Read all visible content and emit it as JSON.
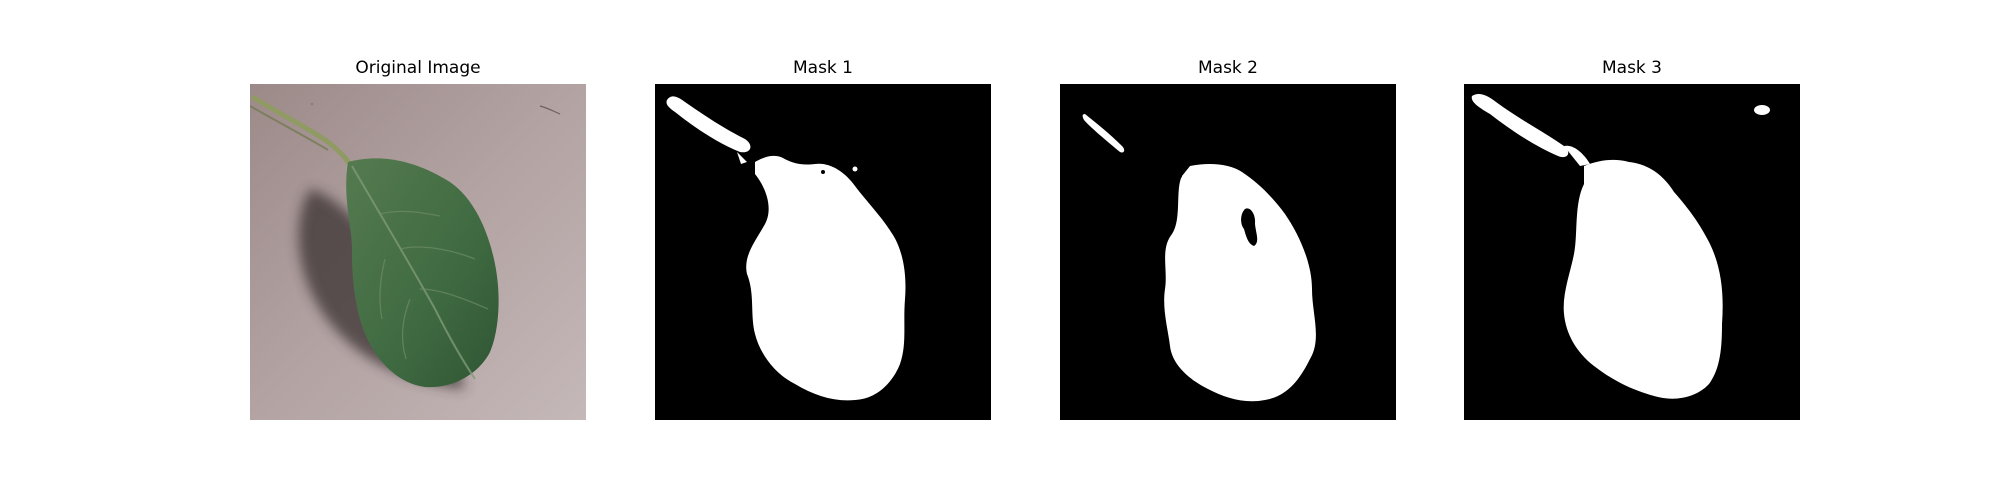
{
  "panels": [
    {
      "title": "Original Image",
      "kind": "photo",
      "subject": "leaf-on-pavement"
    },
    {
      "title": "Mask 1",
      "kind": "binary-mask",
      "foreground_color": "#ffffff",
      "background_color": "#000000"
    },
    {
      "title": "Mask 2",
      "kind": "binary-mask",
      "foreground_color": "#ffffff",
      "background_color": "#000000"
    },
    {
      "title": "Mask 3",
      "kind": "binary-mask",
      "foreground_color": "#ffffff",
      "background_color": "#000000"
    }
  ]
}
